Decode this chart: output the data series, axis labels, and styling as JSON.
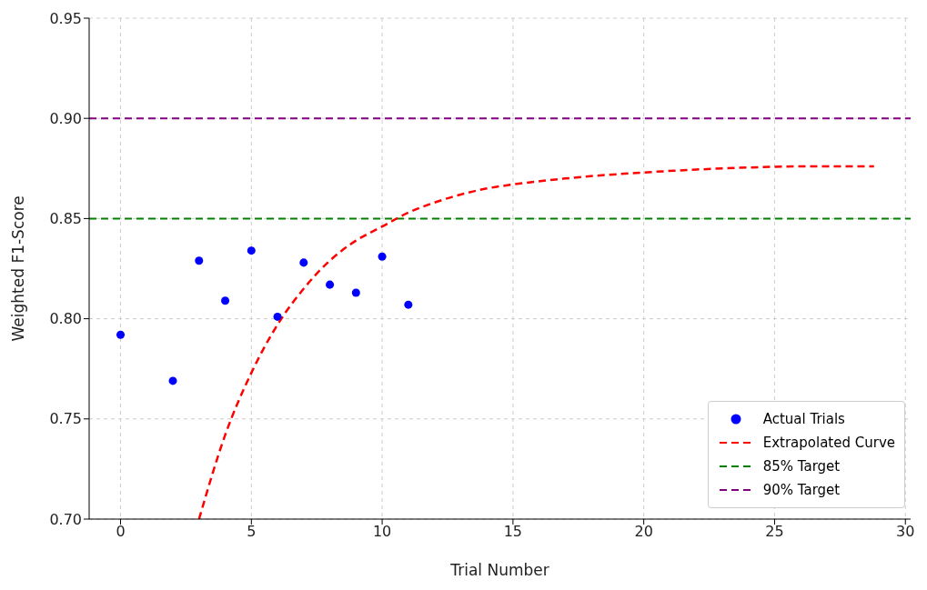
{
  "chart_data": {
    "type": "scatter",
    "xlabel": "Trial Number",
    "ylabel": "Weighted F1-Score",
    "xlim": [
      -1.2,
      30.2
    ],
    "xticks": [
      0,
      5,
      10,
      15,
      20,
      25,
      30
    ],
    "ylim": [
      0.7,
      0.95
    ],
    "yticks": [
      {
        "value": 0.7,
        "label": "0.70"
      },
      {
        "value": 0.75,
        "label": "0.75"
      },
      {
        "value": 0.8,
        "label": "0.80"
      },
      {
        "value": 0.85,
        "label": "0.85"
      },
      {
        "value": 0.9,
        "label": "0.90"
      },
      {
        "value": 0.95,
        "label": "0.95"
      }
    ],
    "grid": true,
    "legend": "bottom right",
    "series": [
      {
        "name": "Actual  Trials",
        "color": "#0000ff",
        "marker": "circle",
        "x": [
          0,
          2,
          3,
          4,
          5,
          6,
          7,
          8,
          9,
          10,
          11
        ],
        "values": [
          0.792,
          0.769,
          0.829,
          0.809,
          0.834,
          0.801,
          0.828,
          0.817,
          0.813,
          0.831,
          0.807
        ]
      },
      {
        "name": "Extrapolated Curve",
        "type": "line",
        "color": "#ff0000",
        "line_style": "dashed",
        "marker": "none",
        "x": [
          3,
          4,
          5,
          6,
          7,
          8,
          9,
          10,
          11,
          12,
          13,
          14,
          15,
          17,
          20,
          23,
          26,
          28.8
        ],
        "values": [
          0.7,
          0.742,
          0.773,
          0.797,
          0.815,
          0.829,
          0.839,
          0.846,
          0.853,
          0.858,
          0.862,
          0.865,
          0.867,
          0.87,
          0.873,
          0.875,
          0.876,
          0.876
        ]
      }
    ],
    "ref_lines": [
      {
        "axis": "y",
        "value": 0.85,
        "label": "85% Target",
        "color": "#008000",
        "line_style": "dashed"
      },
      {
        "axis": "y",
        "value": 0.9,
        "label": "90% Target",
        "color": "#800080",
        "line_style": "dashed"
      }
    ]
  }
}
